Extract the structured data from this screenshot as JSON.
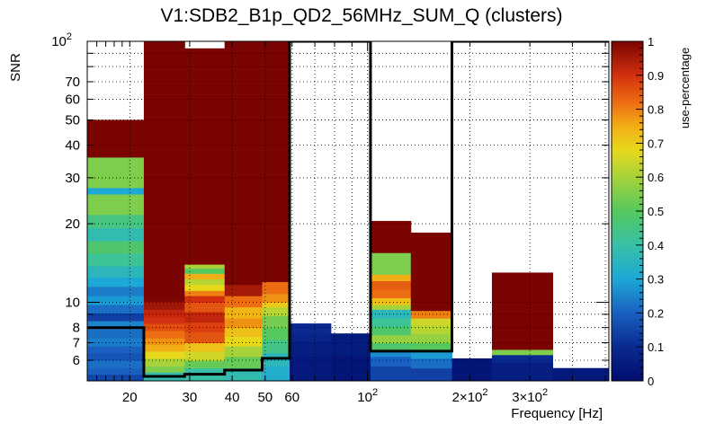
{
  "chart_data": {
    "type": "heatmap",
    "title": "V1:SDB2_B1p_QD2_56MHz_SUM_Q (clusters)",
    "xlabel": "Frequency [Hz]",
    "ylabel": "SNR",
    "zlabel": "use-percentage",
    "x_scale": "log",
    "y_scale": "log",
    "xlim": [
      15,
      512
    ],
    "ylim": [
      5,
      100
    ],
    "zlim": [
      0,
      1
    ],
    "grid": true,
    "x_ticks": [
      {
        "value": 20,
        "label": "20"
      },
      {
        "value": 30,
        "label": "30"
      },
      {
        "value": 40,
        "label": "40"
      },
      {
        "value": 50,
        "label": "50"
      },
      {
        "value": 60,
        "label": "60"
      },
      {
        "value": 100,
        "label": "10",
        "exp": "2"
      },
      {
        "value": 200,
        "label": "2×10",
        "exp": "2"
      },
      {
        "value": 300,
        "label": "3×10",
        "exp": "2"
      }
    ],
    "y_ticks": [
      {
        "value": 6,
        "label": "6"
      },
      {
        "value": 7,
        "label": "7"
      },
      {
        "value": 8,
        "label": "8"
      },
      {
        "value": 10,
        "label": "10"
      },
      {
        "value": 20,
        "label": "20"
      },
      {
        "value": 30,
        "label": "30"
      },
      {
        "value": 40,
        "label": "40"
      },
      {
        "value": 50,
        "label": "50"
      },
      {
        "value": 60,
        "label": "60"
      },
      {
        "value": 70,
        "label": "70"
      },
      {
        "value": 100,
        "label": "10",
        "exp": "2"
      }
    ],
    "z_ticks": [
      "0",
      "0.1",
      "0.2",
      "0.3",
      "0.4",
      "0.5",
      "0.6",
      "0.7",
      "0.8",
      "0.9",
      "1"
    ],
    "columns": [
      {
        "x0": 15,
        "x1": 22,
        "cells": [
          [
            5.0,
            5.3,
            0.15
          ],
          [
            5.3,
            5.6,
            0.2
          ],
          [
            5.6,
            6.0,
            0.22
          ],
          [
            6.0,
            6.4,
            0.18
          ],
          [
            6.4,
            6.8,
            0.2
          ],
          [
            6.8,
            7.3,
            0.24
          ],
          [
            7.3,
            7.9,
            0.22
          ],
          [
            7.9,
            8.5,
            0.25
          ],
          [
            8.5,
            9.1,
            0.14
          ],
          [
            9.1,
            9.8,
            0.22
          ],
          [
            9.8,
            10.6,
            0.28
          ],
          [
            10.6,
            11.5,
            0.24
          ],
          [
            11.5,
            12.5,
            0.3
          ],
          [
            12.5,
            13.8,
            0.36
          ],
          [
            13.8,
            15.4,
            0.42
          ],
          [
            15.4,
            17.2,
            0.48
          ],
          [
            17.2,
            19.3,
            0.38
          ],
          [
            19.3,
            21.7,
            0.45
          ],
          [
            21.7,
            26.0,
            0.55
          ],
          [
            26.0,
            27.5,
            0.3
          ],
          [
            27.5,
            36.0,
            0.55
          ],
          [
            36.0,
            50.0,
            1.0
          ]
        ]
      },
      {
        "x0": 22,
        "x1": 29,
        "cells": [
          [
            5.0,
            5.4,
            0.38
          ],
          [
            5.4,
            5.7,
            0.55
          ],
          [
            5.7,
            6.1,
            0.6
          ],
          [
            6.1,
            6.5,
            0.68
          ],
          [
            6.5,
            6.9,
            0.75
          ],
          [
            6.9,
            7.3,
            0.78
          ],
          [
            7.3,
            7.8,
            0.82
          ],
          [
            7.8,
            8.3,
            0.86
          ],
          [
            8.3,
            8.8,
            0.9
          ],
          [
            8.8,
            9.4,
            0.92
          ],
          [
            9.4,
            10.1,
            0.96
          ],
          [
            10.1,
            100.0,
            1.0
          ]
        ]
      },
      {
        "x0": 29,
        "x1": 38,
        "cells": [
          [
            5.0,
            5.6,
            0.4
          ],
          [
            5.6,
            6.0,
            0.52
          ],
          [
            6.0,
            6.5,
            0.65
          ],
          [
            6.5,
            7.0,
            0.72
          ],
          [
            7.0,
            7.7,
            0.85
          ],
          [
            7.7,
            8.4,
            0.88
          ],
          [
            8.4,
            9.2,
            0.92
          ],
          [
            9.2,
            10.0,
            0.85
          ],
          [
            10.0,
            10.6,
            0.9
          ],
          [
            10.6,
            11.1,
            0.8
          ],
          [
            11.1,
            11.7,
            0.68
          ],
          [
            11.7,
            12.3,
            0.62
          ],
          [
            12.3,
            12.9,
            0.75
          ],
          [
            12.9,
            13.5,
            0.5
          ],
          [
            13.5,
            14.0,
            0.6
          ],
          [
            14.0,
            94.0,
            1.0
          ]
        ]
      },
      {
        "x0": 38,
        "x1": 49,
        "cells": [
          [
            5.0,
            5.6,
            0.38
          ],
          [
            5.6,
            6.2,
            0.52
          ],
          [
            6.2,
            6.8,
            0.6
          ],
          [
            6.8,
            7.4,
            0.68
          ],
          [
            7.4,
            8.0,
            0.72
          ],
          [
            8.0,
            8.7,
            0.78
          ],
          [
            8.7,
            9.6,
            0.74
          ],
          [
            9.6,
            10.6,
            0.82
          ],
          [
            10.6,
            11.7,
            0.95
          ],
          [
            11.7,
            100.0,
            1.0
          ]
        ]
      },
      {
        "x0": 49,
        "x1": 59,
        "cells": [
          [
            5.0,
            5.7,
            0.32
          ],
          [
            5.7,
            6.4,
            0.36
          ],
          [
            6.4,
            7.2,
            0.44
          ],
          [
            7.2,
            8.0,
            0.5
          ],
          [
            8.0,
            8.9,
            0.54
          ],
          [
            8.9,
            9.6,
            0.62
          ],
          [
            9.6,
            10.0,
            0.7
          ],
          [
            10.0,
            10.8,
            0.78
          ],
          [
            10.8,
            12.0,
            0.82
          ],
          [
            12.0,
            100.0,
            1.0
          ]
        ]
      },
      {
        "x0": 59,
        "x1": 78,
        "cells": [
          [
            5.0,
            6.2,
            0.04
          ],
          [
            6.2,
            7.0,
            0.06
          ],
          [
            7.0,
            7.6,
            0.08
          ],
          [
            7.6,
            8.3,
            0.1
          ]
        ]
      },
      {
        "x0": 78,
        "x1": 102,
        "cells": [
          [
            5.0,
            6.3,
            0.03
          ],
          [
            6.3,
            7.6,
            0.05
          ]
        ]
      },
      {
        "x0": 102,
        "x1": 134,
        "cells": [
          [
            5.0,
            5.7,
            0.15
          ],
          [
            5.7,
            6.2,
            0.2
          ],
          [
            6.2,
            6.5,
            0.26
          ],
          [
            6.5,
            7.0,
            0.48
          ],
          [
            7.0,
            7.5,
            0.58
          ],
          [
            7.5,
            8.1,
            0.48
          ],
          [
            8.1,
            8.7,
            0.42
          ],
          [
            8.7,
            9.4,
            0.36
          ],
          [
            9.4,
            9.8,
            0.6
          ],
          [
            9.8,
            10.4,
            0.72
          ],
          [
            10.4,
            11.2,
            0.82
          ],
          [
            11.2,
            12.1,
            0.84
          ],
          [
            12.1,
            12.8,
            0.75
          ],
          [
            12.8,
            15.5,
            0.55
          ],
          [
            15.5,
            20.5,
            1.0
          ]
        ]
      },
      {
        "x0": 134,
        "x1": 177,
        "cells": [
          [
            5.0,
            5.6,
            0.14
          ],
          [
            5.6,
            6.1,
            0.22
          ],
          [
            6.1,
            6.5,
            0.28
          ],
          [
            6.5,
            7.0,
            0.5
          ],
          [
            7.0,
            7.6,
            0.58
          ],
          [
            7.6,
            8.2,
            0.62
          ],
          [
            8.2,
            8.7,
            0.65
          ],
          [
            8.7,
            9.3,
            0.8
          ],
          [
            9.3,
            18.5,
            1.0
          ]
        ]
      },
      {
        "x0": 177,
        "x1": 232,
        "cells": [
          [
            5.0,
            6.1,
            0.03
          ]
        ]
      },
      {
        "x0": 232,
        "x1": 350,
        "cells": [
          [
            5.0,
            5.9,
            0.06
          ],
          [
            5.9,
            6.3,
            0.1
          ],
          [
            6.3,
            6.6,
            0.55
          ],
          [
            6.6,
            13.0,
            1.0
          ]
        ]
      },
      {
        "x0": 350,
        "x1": 512,
        "cells": [
          [
            5.0,
            5.6,
            0.04
          ]
        ]
      }
    ],
    "contour": [
      [
        15,
        8
      ],
      [
        22,
        8
      ],
      [
        22,
        5.2
      ],
      [
        29,
        5.2
      ],
      [
        29,
        5.3
      ],
      [
        38,
        5.3
      ],
      [
        38,
        5.5
      ],
      [
        49,
        5.5
      ],
      [
        49,
        6.1
      ],
      [
        59,
        6.1
      ],
      [
        59,
        100
      ],
      [
        102,
        100
      ],
      [
        102,
        6.5
      ],
      [
        177,
        6.5
      ],
      [
        177,
        100
      ],
      [
        512,
        100
      ]
    ]
  }
}
